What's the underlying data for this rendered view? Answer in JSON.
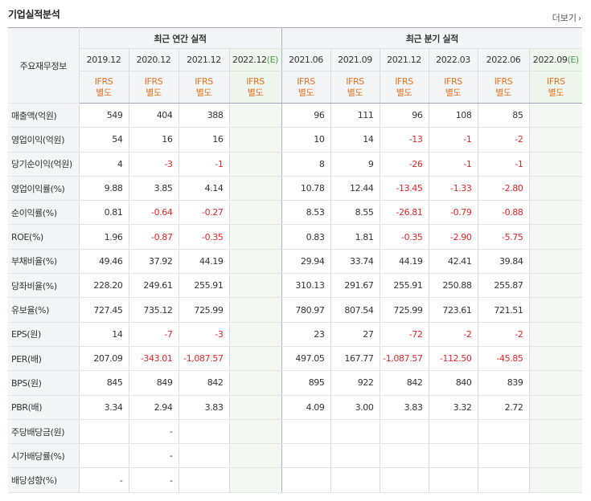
{
  "header": {
    "title": "기업실적분석",
    "more_label": "더보기"
  },
  "table": {
    "corner_label": "주요재무정보",
    "annual_label": "최근 연간 실적",
    "quarter_label": "최근 분기 실적",
    "annual_dates": [
      "2019.12",
      "2020.12",
      "2021.12",
      "2022.12"
    ],
    "quarter_dates": [
      "2021.06",
      "2021.09",
      "2021.12",
      "2022.03",
      "2022.06",
      "2022.09"
    ],
    "estimate_marker": "(E)",
    "ifrs_top": "IFRS",
    "ifrs_bottom": "별도",
    "rows": [
      {
        "label": "매출액(억원)",
        "values": [
          "549",
          "404",
          "388",
          "",
          "96",
          "111",
          "96",
          "108",
          "85",
          ""
        ]
      },
      {
        "label": "영업이익(억원)",
        "values": [
          "54",
          "16",
          "16",
          "",
          "10",
          "14",
          "-13",
          "-1",
          "-2",
          ""
        ]
      },
      {
        "label": "당기순이익(억원)",
        "values": [
          "4",
          "-3",
          "-1",
          "",
          "8",
          "9",
          "-26",
          "-1",
          "-1",
          ""
        ]
      },
      {
        "label": "영업이익률(%)",
        "values": [
          "9.88",
          "3.85",
          "4.14",
          "",
          "10.78",
          "12.44",
          "-13.45",
          "-1.33",
          "-2.80",
          ""
        ]
      },
      {
        "label": "순이익률(%)",
        "values": [
          "0.81",
          "-0.64",
          "-0.27",
          "",
          "8.53",
          "8.55",
          "-26.81",
          "-0.79",
          "-0.88",
          ""
        ]
      },
      {
        "label": "ROE(%)",
        "values": [
          "1.96",
          "-0.87",
          "-0.35",
          "",
          "0.83",
          "1.81",
          "-0.35",
          "-2.90",
          "-5.75",
          ""
        ]
      },
      {
        "label": "부채비율(%)",
        "values": [
          "49.46",
          "37.92",
          "44.19",
          "",
          "29.94",
          "33.74",
          "44.19",
          "42.41",
          "39.84",
          ""
        ]
      },
      {
        "label": "당좌비율(%)",
        "values": [
          "228.20",
          "249.61",
          "255.91",
          "",
          "310.13",
          "291.67",
          "255.91",
          "250.88",
          "255.87",
          ""
        ]
      },
      {
        "label": "유보율(%)",
        "values": [
          "727.45",
          "735.12",
          "725.99",
          "",
          "780.97",
          "807.54",
          "725.99",
          "723.61",
          "721.51",
          ""
        ]
      },
      {
        "label": "EPS(원)",
        "values": [
          "14",
          "-7",
          "-3",
          "",
          "23",
          "27",
          "-72",
          "-2",
          "-2",
          ""
        ]
      },
      {
        "label": "PER(배)",
        "values": [
          "207.09",
          "-343.01",
          "-1,087.57",
          "",
          "497.05",
          "167.77",
          "-1,087.57",
          "-112.50",
          "-45.85",
          ""
        ]
      },
      {
        "label": "BPS(원)",
        "values": [
          "845",
          "849",
          "842",
          "",
          "895",
          "922",
          "842",
          "840",
          "839",
          ""
        ]
      },
      {
        "label": "PBR(배)",
        "values": [
          "3.34",
          "2.94",
          "3.83",
          "",
          "4.09",
          "3.00",
          "3.83",
          "3.32",
          "2.72",
          ""
        ]
      },
      {
        "label": "주당배당금(원)",
        "values": [
          "",
          "-",
          "",
          "",
          "",
          "",
          "",
          "",
          "",
          ""
        ]
      },
      {
        "label": "시가배당률(%)",
        "values": [
          "",
          "-",
          "",
          "",
          "",
          "",
          "",
          "",
          "",
          ""
        ]
      },
      {
        "label": "배당성향(%)",
        "values": [
          "-",
          "-",
          "",
          "",
          "",
          "",
          "",
          "",
          "",
          ""
        ]
      }
    ]
  }
}
